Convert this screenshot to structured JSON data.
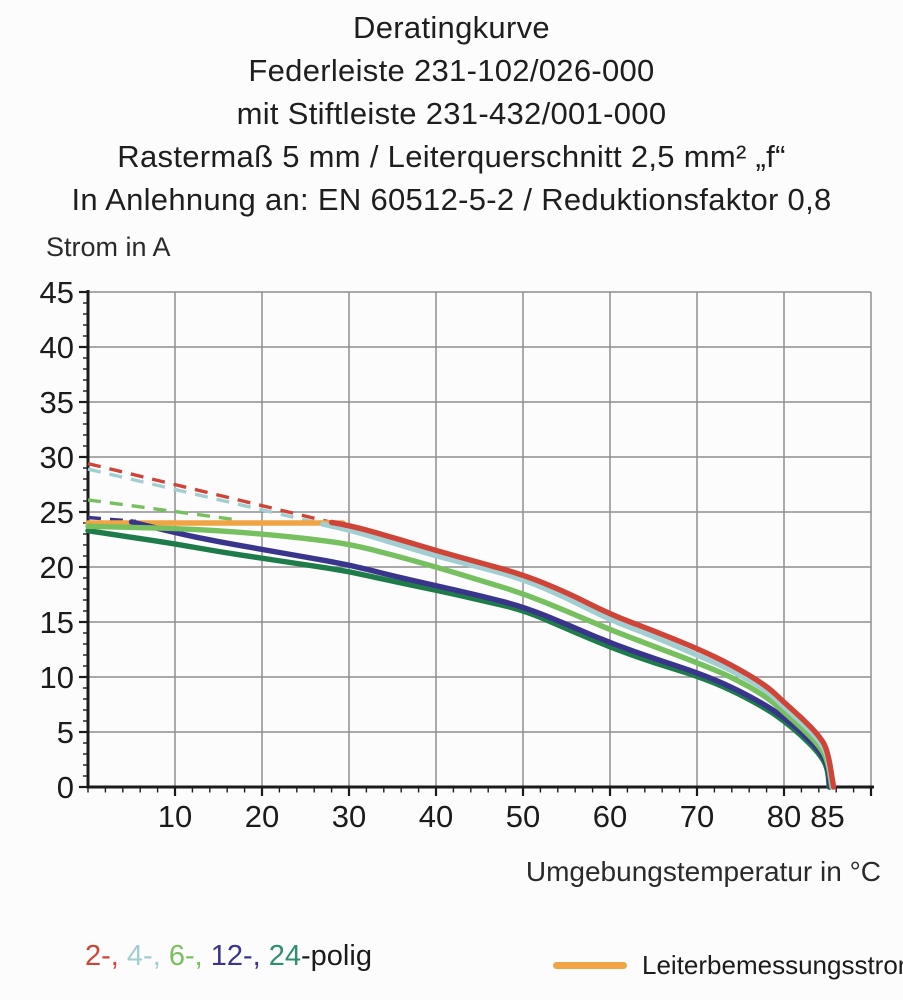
{
  "title_lines": [
    "Deratingkurve",
    "Federleiste 231-102/026-000",
    "mit Stiftleiste 231-432/001-000",
    "Rastermaß 5 mm / Leiterquerschnitt 2,5 mm² „f“",
    "In Anlehnung an: EN 60512-5-2 / Reduktionsfaktor 0,8"
  ],
  "chart": {
    "ylabel": "Strom in A",
    "xlabel": "Umgebungstemperatur in °C",
    "x_tick_labels": [
      10,
      20,
      30,
      40,
      50,
      60,
      70,
      80,
      85
    ],
    "y_tick_labels": [
      0,
      5,
      10,
      15,
      20,
      25,
      30,
      35,
      40,
      45
    ],
    "colors": {
      "grid": "#8f8f8f",
      "axis": "#1b1b1b",
      "background": "#fcfcfc"
    }
  },
  "chart_data": {
    "type": "line",
    "title": "Deratingkurve",
    "xlabel": "Umgebungstemperatur in °C",
    "ylabel": "Strom in A",
    "xlim": [
      0,
      90
    ],
    "ylim": [
      0,
      45
    ],
    "x_major_grid": 10,
    "y_major_grid": 5,
    "note": "dashed = portion of derating curve above Leiterbemessungsstrom (24 A); solid = valid range",
    "series": [
      {
        "id": "leiterbemessungsstrom",
        "name": "Leiterbemessungsstrom",
        "color": "#f0a443",
        "solid": [
          [
            0,
            24
          ],
          [
            29.3,
            24
          ]
        ]
      },
      {
        "id": "24-polig",
        "name": "24-polig",
        "color": "#1e7c4b",
        "solid": [
          [
            0,
            23.3
          ],
          [
            5,
            22.7
          ],
          [
            10,
            22.1
          ],
          [
            15,
            21.4
          ],
          [
            20,
            20.8
          ],
          [
            25,
            20.2
          ],
          [
            30,
            19.6
          ],
          [
            35,
            18.7
          ],
          [
            40,
            17.9
          ],
          [
            45,
            17.0
          ],
          [
            50,
            16.1
          ],
          [
            55,
            14.4
          ],
          [
            60,
            12.7
          ],
          [
            65,
            11.3
          ],
          [
            70,
            10.1
          ],
          [
            74,
            8.8
          ],
          [
            78,
            7.1
          ],
          [
            80,
            6.0
          ],
          [
            82,
            4.7
          ],
          [
            84,
            3.1
          ],
          [
            85,
            1.8
          ],
          [
            85.2,
            0
          ]
        ]
      },
      {
        "id": "12-polig",
        "name": "12-polig",
        "color": "#39358c",
        "dashed": [
          [
            0,
            24.5
          ],
          [
            5.5,
            24.15
          ]
        ],
        "solid": [
          [
            5,
            24.1
          ],
          [
            10,
            23.1
          ],
          [
            15,
            22.3
          ],
          [
            20,
            21.6
          ],
          [
            25,
            20.9
          ],
          [
            30,
            20.2
          ],
          [
            35,
            19.2
          ],
          [
            40,
            18.3
          ],
          [
            45,
            17.4
          ],
          [
            50,
            16.4
          ],
          [
            55,
            14.8
          ],
          [
            60,
            13.1
          ],
          [
            65,
            11.7
          ],
          [
            70,
            10.4
          ],
          [
            74,
            9.1
          ],
          [
            78,
            7.4
          ],
          [
            80,
            6.3
          ],
          [
            82,
            5.0
          ],
          [
            84,
            3.4
          ],
          [
            85,
            2.1
          ],
          [
            85.3,
            0
          ]
        ]
      },
      {
        "id": "6-polig",
        "name": "6-polig",
        "color": "#76c05f",
        "dashed": [
          [
            0,
            26.1
          ],
          [
            17,
            24.3
          ]
        ],
        "solid": [
          [
            0,
            23.7
          ],
          [
            5,
            23.6
          ],
          [
            10,
            23.5
          ],
          [
            15,
            23.3
          ],
          [
            20,
            23.0
          ],
          [
            25,
            22.6
          ],
          [
            30,
            22.1
          ],
          [
            35,
            21.1
          ],
          [
            40,
            20.0
          ],
          [
            45,
            18.8
          ],
          [
            50,
            17.6
          ],
          [
            55,
            16.0
          ],
          [
            60,
            14.3
          ],
          [
            65,
            12.8
          ],
          [
            70,
            11.3
          ],
          [
            74,
            10.0
          ],
          [
            78,
            8.2
          ],
          [
            80,
            6.8
          ],
          [
            82,
            5.4
          ],
          [
            84,
            3.8
          ],
          [
            85,
            2.5
          ],
          [
            85.5,
            0
          ]
        ]
      },
      {
        "id": "4-polig",
        "name": "4-polig",
        "color": "#a2ced2",
        "dashed": [
          [
            0,
            28.9
          ],
          [
            27,
            23.9
          ]
        ],
        "solid": [
          [
            27,
            23.9
          ],
          [
            30,
            23.4
          ],
          [
            35,
            22.2
          ],
          [
            40,
            21.0
          ],
          [
            45,
            20.0
          ],
          [
            50,
            18.9
          ],
          [
            55,
            17.2
          ],
          [
            60,
            15.2
          ],
          [
            65,
            13.7
          ],
          [
            70,
            12.0
          ],
          [
            74,
            10.6
          ],
          [
            78,
            8.8
          ],
          [
            80,
            7.3
          ],
          [
            82,
            5.9
          ],
          [
            84,
            4.3
          ],
          [
            85,
            3.0
          ],
          [
            85.6,
            0
          ]
        ]
      },
      {
        "id": "2-polig",
        "name": "2-polig",
        "color": "#cf4437",
        "dashed": [
          [
            0,
            29.4
          ],
          [
            28,
            24.05
          ]
        ],
        "solid": [
          [
            28,
            24.05
          ],
          [
            30,
            23.8
          ],
          [
            35,
            22.7
          ],
          [
            40,
            21.5
          ],
          [
            45,
            20.4
          ],
          [
            50,
            19.3
          ],
          [
            55,
            17.7
          ],
          [
            60,
            15.7
          ],
          [
            65,
            14.2
          ],
          [
            70,
            12.6
          ],
          [
            74,
            11.1
          ],
          [
            78,
            9.2
          ],
          [
            80,
            7.7
          ],
          [
            82,
            6.3
          ],
          [
            84,
            4.7
          ],
          [
            85,
            3.4
          ],
          [
            85.7,
            0
          ]
        ]
      }
    ]
  },
  "legend": {
    "left_parts": [
      {
        "label": "2-, ",
        "color": "#cf4437"
      },
      {
        "label": "4-, ",
        "color": "#a2ced2"
      },
      {
        "label": "6-, ",
        "color": "#76c05f"
      },
      {
        "label": "12-, ",
        "color": "#39358c"
      },
      {
        "label": "24",
        "color": "#2e8f70"
      },
      {
        "label": "-polig",
        "color": "#1b1b1b"
      }
    ],
    "right": {
      "label": "Leiterbemessungsstrom",
      "color": "#f0a443"
    }
  }
}
